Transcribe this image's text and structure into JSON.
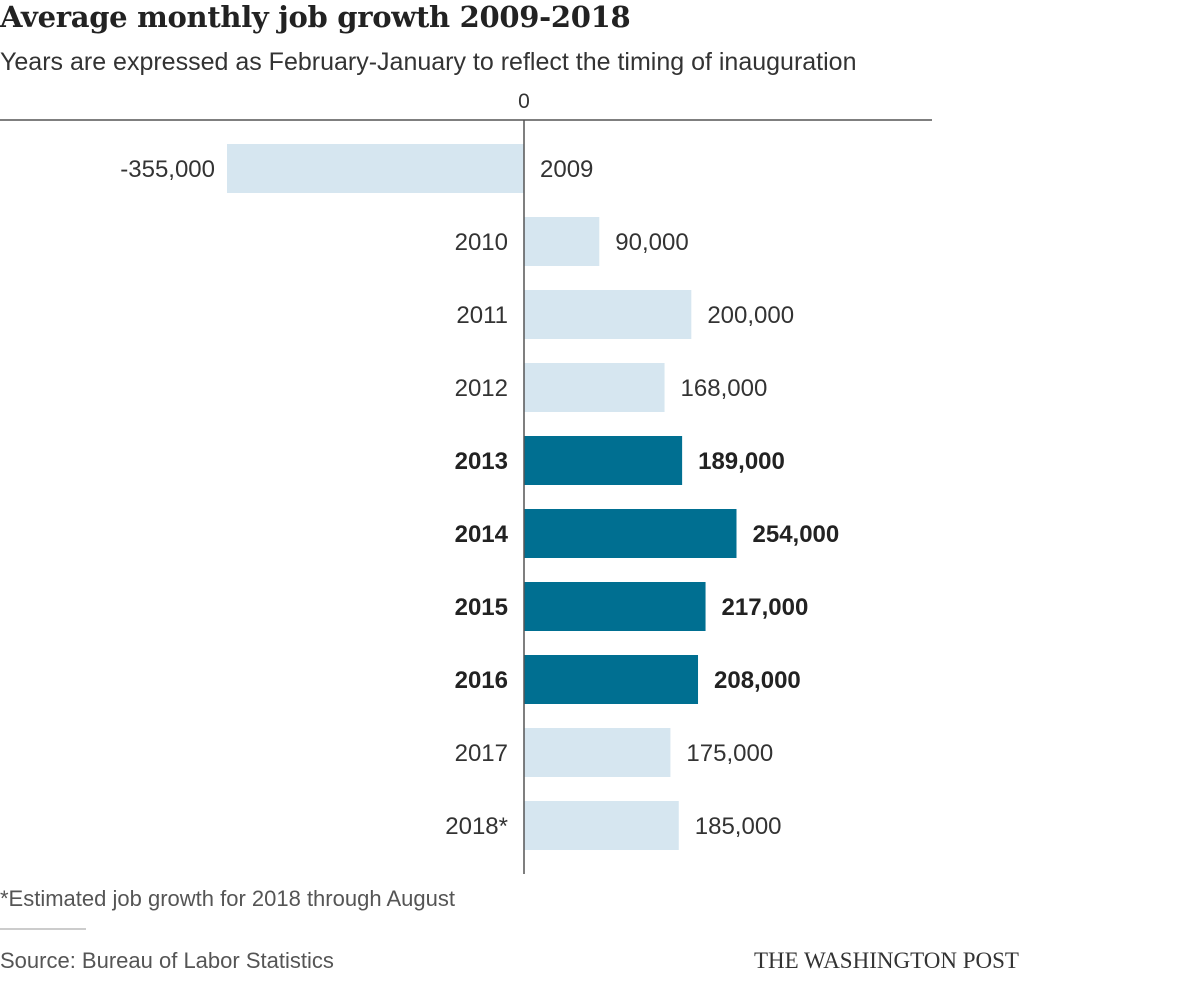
{
  "colors": {
    "bar_light": "#d6e6f0",
    "bar_dark": "#006f91",
    "axis": "#555555",
    "text": "#333333",
    "text_bold": "#222222"
  },
  "chart_data": {
    "type": "bar",
    "orientation": "horizontal",
    "title": "Average monthly job growth 2009-2018",
    "subtitle": "Years are expressed as February-January to reflect the timing of inauguration",
    "zero_label": "0",
    "categories": [
      "2009",
      "2010",
      "2011",
      "2012",
      "2013",
      "2014",
      "2015",
      "2016",
      "2017",
      "2018*"
    ],
    "values": [
      -355000,
      90000,
      200000,
      168000,
      189000,
      254000,
      217000,
      208000,
      175000,
      185000
    ],
    "value_labels": [
      "-355,000",
      "90,000",
      "200,000",
      "168,000",
      "189,000",
      "254,000",
      "217,000",
      "208,000",
      "175,000",
      "185,000"
    ],
    "highlighted": [
      false,
      false,
      false,
      false,
      true,
      true,
      true,
      true,
      false,
      false
    ],
    "xlim": [
      -355000,
      488000
    ],
    "xlabel": "",
    "ylabel": "",
    "grid": false,
    "legend": "none"
  },
  "footnote": "*Estimated job growth for 2018 through August",
  "source": "Source: Bureau of Labor Statistics",
  "brand": "THE WASHINGTON POST"
}
